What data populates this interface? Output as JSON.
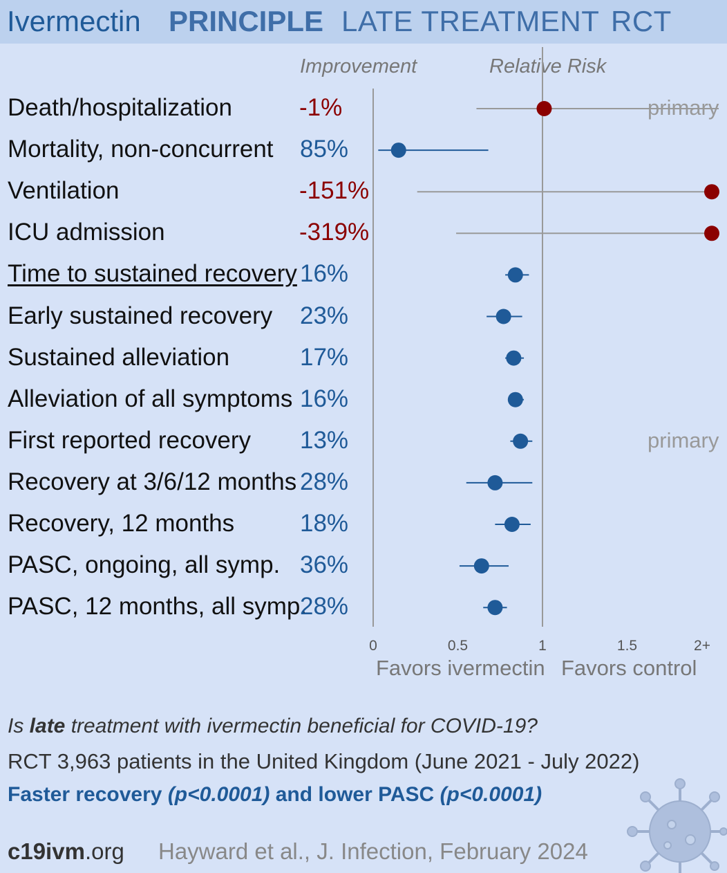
{
  "header": {
    "drug": "Ivermectin",
    "trial": "PRINCIPLE",
    "stage": "LATE TREATMENT",
    "type": "RCT"
  },
  "columns": {
    "improvement": "Improvement",
    "relative_risk": "Relative Risk"
  },
  "chart_data": {
    "type": "forest",
    "xlim": [
      0,
      2
    ],
    "reference_line": 1,
    "x_ticks": [
      "0",
      "0.5",
      "1",
      "1.5",
      "2+"
    ],
    "favors_left": "Favors ivermectin",
    "favors_right": "Favors control",
    "colors": {
      "positive": "#1f5a98",
      "negative": "#8b0000",
      "neg_ci": "#999999"
    },
    "outcomes": [
      {
        "name": "Death/hospitalization",
        "improvement": "-1%",
        "rr": 1.01,
        "ci": [
          0.61,
          2.0
        ],
        "note": "primary",
        "underline": false
      },
      {
        "name": "Mortality, non-concurrent",
        "improvement": "85%",
        "rr": 0.15,
        "ci": [
          0.03,
          0.68
        ],
        "note": "",
        "underline": false
      },
      {
        "name": "Ventilation",
        "improvement": "-151%",
        "rr": 2.0,
        "ci": [
          0.26,
          2.0
        ],
        "note": "",
        "underline": false
      },
      {
        "name": "ICU admission",
        "improvement": "-319%",
        "rr": 2.0,
        "ci": [
          0.49,
          2.0
        ],
        "note": "",
        "underline": false
      },
      {
        "name": "Time to sustained recovery",
        "improvement": "16%",
        "rr": 0.84,
        "ci": [
          0.78,
          0.92
        ],
        "note": "",
        "underline": true
      },
      {
        "name": "Early sustained recovery",
        "improvement": "23%",
        "rr": 0.77,
        "ci": [
          0.67,
          0.88
        ],
        "note": "",
        "underline": false
      },
      {
        "name": "Sustained alleviation",
        "improvement": "17%",
        "rr": 0.83,
        "ci": [
          0.78,
          0.89
        ],
        "note": "",
        "underline": false
      },
      {
        "name": "Alleviation of all symptoms",
        "improvement": "16%",
        "rr": 0.84,
        "ci": [
          0.8,
          0.89
        ],
        "note": "",
        "underline": false
      },
      {
        "name": "First reported recovery",
        "improvement": "13%",
        "rr": 0.87,
        "ci": [
          0.81,
          0.94
        ],
        "note": "primary",
        "underline": false
      },
      {
        "name": "Recovery at 3/6/12 months",
        "improvement": "28%",
        "rr": 0.72,
        "ci": [
          0.55,
          0.94
        ],
        "note": "",
        "underline": false
      },
      {
        "name": "Recovery, 12 months",
        "improvement": "18%",
        "rr": 0.82,
        "ci": [
          0.72,
          0.93
        ],
        "note": "",
        "underline": false
      },
      {
        "name": "PASC, ongoing, all symp.",
        "improvement": "36%",
        "rr": 0.64,
        "ci": [
          0.51,
          0.8
        ],
        "note": "",
        "underline": false
      },
      {
        "name": "PASC, 12 months, all symp.",
        "improvement": "28%",
        "rr": 0.72,
        "ci": [
          0.65,
          0.79
        ],
        "note": "",
        "underline": false
      }
    ]
  },
  "footer": {
    "question_prefix": "Is ",
    "question_bold": "late",
    "question_suffix": " treatment with ivermectin beneficial for COVID-19?",
    "population": "RCT 3,963 patients in the United Kingdom (June 2021 - July 2022)",
    "result_a": "Faster recovery ",
    "result_p1": "(p<0.0001)",
    "result_b": " and lower PASC ",
    "result_p2": "(p<0.0001)",
    "site_bold": "c19ivm",
    "site_rest": ".org",
    "citation": "Hayward et al., J. Infection, February 2024",
    "virus_icon": "coronavirus-icon"
  }
}
